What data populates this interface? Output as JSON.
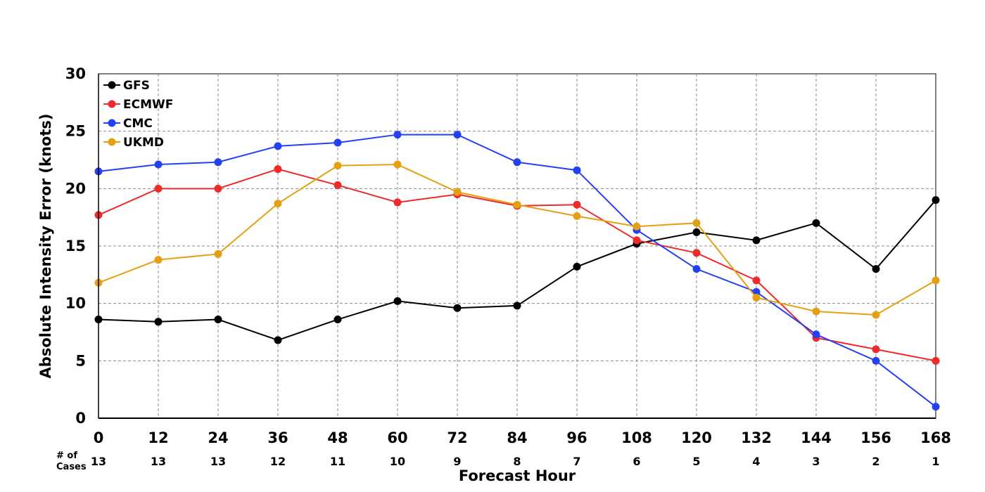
{
  "chart_data": {
    "type": "line",
    "title": "",
    "xlabel": "Forecast Hour",
    "ylabel": "Absolute Intensity Error (knots)",
    "x": [
      0,
      12,
      24,
      36,
      48,
      60,
      72,
      84,
      96,
      108,
      120,
      132,
      144,
      156,
      168
    ],
    "xlim": [
      0,
      168
    ],
    "ylim": [
      0,
      30
    ],
    "yticks": [
      0,
      5,
      10,
      15,
      20,
      25,
      30
    ],
    "grid": true,
    "legend_position": "top-left",
    "cases_label_line1": "# of",
    "cases_label_line2": "Cases",
    "cases": [
      13,
      13,
      13,
      12,
      11,
      10,
      9,
      8,
      7,
      6,
      5,
      4,
      3,
      2,
      1
    ],
    "series": [
      {
        "name": "GFS",
        "color": "#000000",
        "values": [
          8.6,
          8.4,
          8.6,
          6.8,
          8.6,
          10.2,
          9.6,
          9.8,
          13.2,
          15.2,
          16.2,
          15.5,
          17.0,
          13.0,
          19.0
        ]
      },
      {
        "name": "ECMWF",
        "color": "#ee2a2a",
        "values": [
          17.7,
          20.0,
          20.0,
          21.7,
          20.3,
          18.8,
          19.5,
          18.5,
          18.6,
          15.5,
          14.4,
          12.0,
          7.0,
          6.0,
          5.0
        ]
      },
      {
        "name": "CMC",
        "color": "#2440f5",
        "values": [
          21.5,
          22.1,
          22.3,
          23.7,
          24.0,
          24.7,
          24.7,
          22.3,
          21.6,
          16.4,
          13.0,
          11.0,
          7.3,
          5.0,
          1.0
        ]
      },
      {
        "name": "UKMD",
        "color": "#e5a012",
        "values": [
          11.8,
          13.8,
          14.3,
          18.7,
          22.0,
          22.1,
          19.7,
          18.6,
          17.6,
          16.7,
          17.0,
          10.5,
          9.3,
          9.0,
          12.0
        ]
      }
    ]
  }
}
